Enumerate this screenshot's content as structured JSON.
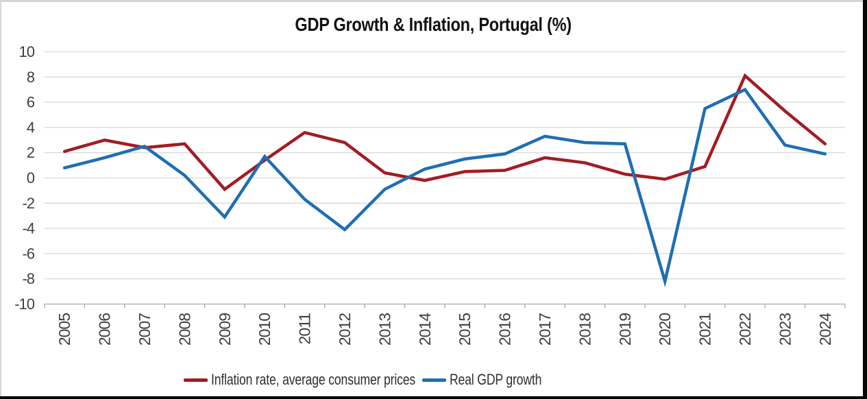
{
  "page": {
    "background": "#ffffff",
    "title": "GDP Growth & Inflation, Portugal (%)"
  },
  "chart_data": {
    "type": "line",
    "title": "GDP Growth & Inflation, Portugal (%)",
    "xlabel": "",
    "ylabel": "",
    "categories": [
      "2005",
      "2006",
      "2007",
      "2008",
      "2009",
      "2010",
      "2011",
      "2012",
      "2013",
      "2014",
      "2015",
      "2016",
      "2017",
      "2018",
      "2019",
      "2020",
      "2021",
      "2022",
      "2023",
      "2024"
    ],
    "series": [
      {
        "name": "Inflation rate, average consumer prices",
        "color": "#a31c23",
        "values": [
          2.1,
          3.0,
          2.4,
          2.7,
          -0.9,
          1.4,
          3.6,
          2.8,
          0.4,
          -0.2,
          0.5,
          0.6,
          1.6,
          1.2,
          0.3,
          -0.1,
          0.9,
          8.1,
          5.3,
          2.7
        ]
      },
      {
        "name": "Real GDP growth",
        "color": "#1f6eb4",
        "values": [
          0.8,
          1.6,
          2.5,
          0.2,
          -3.1,
          1.7,
          -1.7,
          -4.1,
          -0.9,
          0.7,
          1.5,
          1.9,
          3.3,
          2.8,
          2.7,
          -8.2,
          5.5,
          7.0,
          2.6,
          1.9
        ]
      }
    ],
    "ylim": [
      -10,
      10
    ],
    "y_ticks": [
      10,
      8,
      6,
      4,
      2,
      0,
      -2,
      -4,
      -6,
      -8,
      -10
    ],
    "grid": "horizontal",
    "legend_position": "bottom",
    "x_labels_rotated_degrees": 90
  },
  "style": {
    "grid_color": "#d9d9d9",
    "axis_color": "#ababab",
    "tick_label_color": "#3f3f3f",
    "title_color": "#111111",
    "legend_text_color": "#2e2e2e",
    "edge_gray": "#d5d5d5",
    "edge_black": "#060606"
  }
}
